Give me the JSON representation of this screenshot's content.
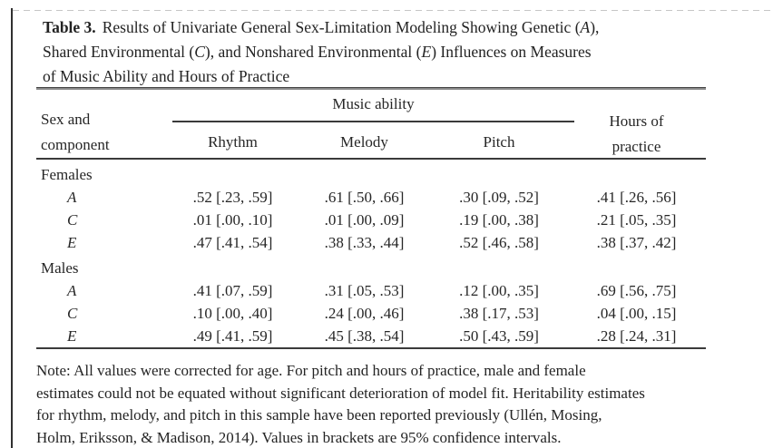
{
  "colors": {
    "background": "#ffffff",
    "text": "#262626",
    "rule": "#3a3a3a",
    "scan_left_border": "#303030",
    "scan_top_line": "#c6c6c6"
  },
  "title": {
    "tag": "Table 3.",
    "l1a": "Results of Univariate General Sex-Limitation Modeling Showing Genetic (",
    "l1b": "A",
    "l1c": "),",
    "l2a": "Shared Environmental (",
    "l2b": "C",
    "l2c": "), and Nonshared Environmental (",
    "l2d": "E",
    "l2e": ") Influences on Measures",
    "l3": "of Music Ability and Hours of Practice"
  },
  "table": {
    "header": {
      "col1_line1": "Sex and",
      "col1_line2": "component",
      "spanner": "Music ability",
      "col2": "Rhythm",
      "col3": "Melody",
      "col4": "Pitch",
      "col5_line1": "Hours of",
      "col5_line2": "practice"
    },
    "groups": [
      {
        "label": "Females",
        "rows": [
          {
            "component": "A",
            "rhythm": ".52 [.23, .59]",
            "melody": ".61 [.50, .66]",
            "pitch": ".30 [.09, .52]",
            "practice": ".41 [.26, .56]"
          },
          {
            "component": "C",
            "rhythm": ".01 [.00, .10]",
            "melody": ".01 [.00, .09]",
            "pitch": ".19 [.00, .38]",
            "practice": ".21 [.05, .35]"
          },
          {
            "component": "E",
            "rhythm": ".47 [.41, .54]",
            "melody": ".38 [.33, .44]",
            "pitch": ".52 [.46, .58]",
            "practice": ".38 [.37, .42]"
          }
        ]
      },
      {
        "label": "Males",
        "rows": [
          {
            "component": "A",
            "rhythm": ".41 [.07, .59]",
            "melody": ".31 [.05, .53]",
            "pitch": ".12 [.00, .35]",
            "practice": ".69 [.56, .75]"
          },
          {
            "component": "C",
            "rhythm": ".10 [.00, .40]",
            "melody": ".24 [.00, .46]",
            "pitch": ".38 [.17, .53]",
            "practice": ".04 [.00, .15]"
          },
          {
            "component": "E",
            "rhythm": ".49 [.41, .59]",
            "melody": ".45 [.38, .54]",
            "pitch": ".50 [.43, .59]",
            "practice": ".28 [.24, .31]"
          }
        ]
      }
    ]
  },
  "note": {
    "line1": "Note: All values were corrected for age. For pitch and hours of practice, male and female",
    "line2": "estimates could not be equated without significant deterioration of model fit. Heritability estimates",
    "line3": "for rhythm, melody, and pitch in this sample have been reported previously (Ullén, Mosing,",
    "line4": "Holm, Eriksson, & Madison, 2014). Values in brackets are 95% confidence intervals."
  }
}
